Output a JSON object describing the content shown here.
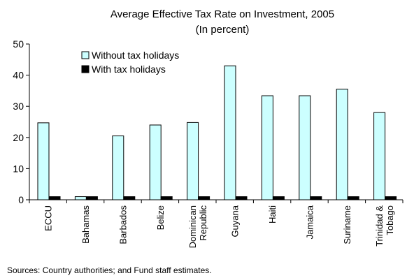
{
  "chart_data": {
    "type": "bar",
    "title": "Average Effective Tax Rate on Investment, 2005",
    "subtitle": "(In percent)",
    "categories": [
      "ECCU",
      "Bahamas",
      "Barbados",
      "Belize",
      "Dominican Republic",
      "Guyana",
      "Haiti",
      "Jamaica",
      "Suriname",
      "Trinidad & Tobago"
    ],
    "category_label_lines": [
      [
        "ECCU"
      ],
      [
        "Bahamas"
      ],
      [
        "Barbados"
      ],
      [
        "Belize"
      ],
      [
        "Dominican",
        "Republic"
      ],
      [
        "Guyana"
      ],
      [
        "Haiti"
      ],
      [
        "Jamaica"
      ],
      [
        "Suriname"
      ],
      [
        "Trinidad &",
        "Tobago"
      ]
    ],
    "series": [
      {
        "name": "Without tax holidays",
        "color": "#ccffff",
        "values": [
          24.7,
          1.0,
          20.5,
          24.0,
          24.8,
          43.0,
          33.4,
          33.4,
          35.5,
          28.0
        ]
      },
      {
        "name": "With tax holidays",
        "color": "#000000",
        "values": [
          1.0,
          1.0,
          1.0,
          1.0,
          1.0,
          1.0,
          1.0,
          1.0,
          1.0,
          1.0
        ]
      }
    ],
    "ylim": [
      0,
      50
    ],
    "yticks": [
      0,
      10,
      20,
      30,
      40,
      50
    ],
    "xlabel": "",
    "ylabel": "",
    "grid": false,
    "legend": "top-left",
    "source": "Sources: Country authorities; and Fund staff estimates."
  }
}
